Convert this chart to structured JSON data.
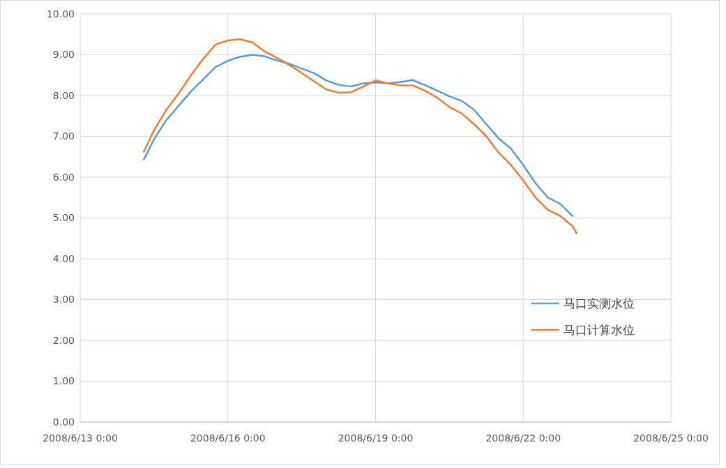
{
  "chart_data": {
    "type": "line",
    "xlim": [
      "2008-06-13T00:00",
      "2008-06-25T00:00"
    ],
    "xticks": [
      {
        "value": "2008-06-13T00:00",
        "label": "2008/6/13  0:00"
      },
      {
        "value": "2008-06-16T00:00",
        "label": "2008/6/16  0:00"
      },
      {
        "value": "2008-06-19T00:00",
        "label": "2008/6/19  0:00"
      },
      {
        "value": "2008-06-22T00:00",
        "label": "2008/6/22  0:00"
      },
      {
        "value": "2008-06-25T00:00",
        "label": "2008/6/25  0:00"
      }
    ],
    "ylim": [
      0,
      10
    ],
    "yticks": [
      {
        "value": 0,
        "label": "0.00"
      },
      {
        "value": 1,
        "label": "1.00"
      },
      {
        "value": 2,
        "label": "2.00"
      },
      {
        "value": 3,
        "label": "3.00"
      },
      {
        "value": 4,
        "label": "4.00"
      },
      {
        "value": 5,
        "label": "5.00"
      },
      {
        "value": 6,
        "label": "6.00"
      },
      {
        "value": 7,
        "label": "7.00"
      },
      {
        "value": 8,
        "label": "8.00"
      },
      {
        "value": 9,
        "label": "9.00"
      },
      {
        "value": 10,
        "label": "10.00"
      }
    ],
    "grid": true,
    "legend": "bottom right",
    "line_style": "solid",
    "marker": "none",
    "series": [
      {
        "name": "马口实测水位",
        "color": "#5b9bd5",
        "x": [
          "2008-06-14T07:00",
          "2008-06-14T12:00",
          "2008-06-14T18:00",
          "2008-06-15T00:00",
          "2008-06-15T06:00",
          "2008-06-15T12:00",
          "2008-06-15T18:00",
          "2008-06-16T00:00",
          "2008-06-16T06:00",
          "2008-06-16T12:00",
          "2008-06-16T18:00",
          "2008-06-17T00:00",
          "2008-06-17T06:00",
          "2008-06-17T12:00",
          "2008-06-17T18:00",
          "2008-06-18T00:00",
          "2008-06-18T06:00",
          "2008-06-18T12:00",
          "2008-06-18T18:00",
          "2008-06-19T00:00",
          "2008-06-19T06:00",
          "2008-06-19T12:00",
          "2008-06-19T18:00",
          "2008-06-20T00:00",
          "2008-06-20T06:00",
          "2008-06-20T12:00",
          "2008-06-20T18:00",
          "2008-06-21T00:00",
          "2008-06-21T06:00",
          "2008-06-21T12:00",
          "2008-06-21T18:00",
          "2008-06-22T00:00",
          "2008-06-22T06:00",
          "2008-06-22T12:00",
          "2008-06-22T18:00",
          "2008-06-23T00:00"
        ],
        "values": [
          6.43,
          6.93,
          7.4,
          7.75,
          8.1,
          8.4,
          8.7,
          8.85,
          8.95,
          9.0,
          8.96,
          8.86,
          8.78,
          8.66,
          8.55,
          8.37,
          8.26,
          8.22,
          8.3,
          8.32,
          8.3,
          8.33,
          8.38,
          8.26,
          8.12,
          7.98,
          7.87,
          7.65,
          7.3,
          6.95,
          6.7,
          6.3,
          5.85,
          5.5,
          5.35,
          5.05
        ]
      },
      {
        "name": "马口计算水位",
        "color": "#ed7d31",
        "x": [
          "2008-06-14T07:00",
          "2008-06-14T12:00",
          "2008-06-14T18:00",
          "2008-06-15T00:00",
          "2008-06-15T06:00",
          "2008-06-15T12:00",
          "2008-06-15T18:00",
          "2008-06-16T00:00",
          "2008-06-16T06:00",
          "2008-06-16T12:00",
          "2008-06-16T18:00",
          "2008-06-17T00:00",
          "2008-06-17T06:00",
          "2008-06-17T12:00",
          "2008-06-17T18:00",
          "2008-06-18T00:00",
          "2008-06-18T06:00",
          "2008-06-18T12:00",
          "2008-06-18T18:00",
          "2008-06-19T00:00",
          "2008-06-19T06:00",
          "2008-06-19T12:00",
          "2008-06-19T18:00",
          "2008-06-20T00:00",
          "2008-06-20T06:00",
          "2008-06-20T12:00",
          "2008-06-20T18:00",
          "2008-06-21T00:00",
          "2008-06-21T06:00",
          "2008-06-21T12:00",
          "2008-06-21T18:00",
          "2008-06-22T00:00",
          "2008-06-22T06:00",
          "2008-06-22T12:00",
          "2008-06-22T18:00",
          "2008-06-23T00:00",
          "2008-06-23T02:00"
        ],
        "values": [
          6.62,
          7.15,
          7.65,
          8.05,
          8.5,
          8.9,
          9.25,
          9.35,
          9.38,
          9.3,
          9.08,
          8.92,
          8.75,
          8.55,
          8.35,
          8.15,
          8.07,
          8.08,
          8.22,
          8.37,
          8.3,
          8.25,
          8.25,
          8.12,
          7.95,
          7.72,
          7.56,
          7.3,
          7.0,
          6.6,
          6.3,
          5.92,
          5.5,
          5.2,
          5.05,
          4.8,
          4.62
        ]
      }
    ]
  }
}
